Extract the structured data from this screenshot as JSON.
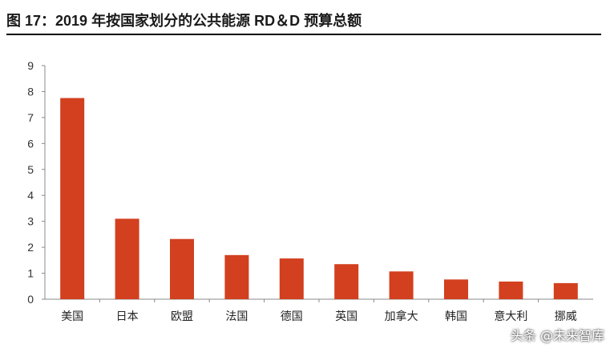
{
  "figure": {
    "title": "图 17：2019 年按国家划分的公共能源 RD＆D 预算总额"
  },
  "watermark": "头条 @未来智库",
  "colors": {
    "bar": "#D2401F",
    "axis": "#888888",
    "rule": "#000000"
  },
  "chart_data": {
    "type": "bar",
    "categories": [
      "美国",
      "日本",
      "欧盟",
      "法国",
      "德国",
      "英国",
      "加拿大",
      "韩国",
      "意大利",
      "挪威"
    ],
    "values": [
      7.75,
      3.1,
      2.32,
      1.7,
      1.57,
      1.35,
      1.07,
      0.76,
      0.68,
      0.62
    ],
    "yticks": [
      0,
      1,
      2,
      3,
      4,
      5,
      6,
      7,
      8,
      9
    ],
    "ylim": [
      0,
      9
    ],
    "grid": false,
    "legend": "none"
  }
}
